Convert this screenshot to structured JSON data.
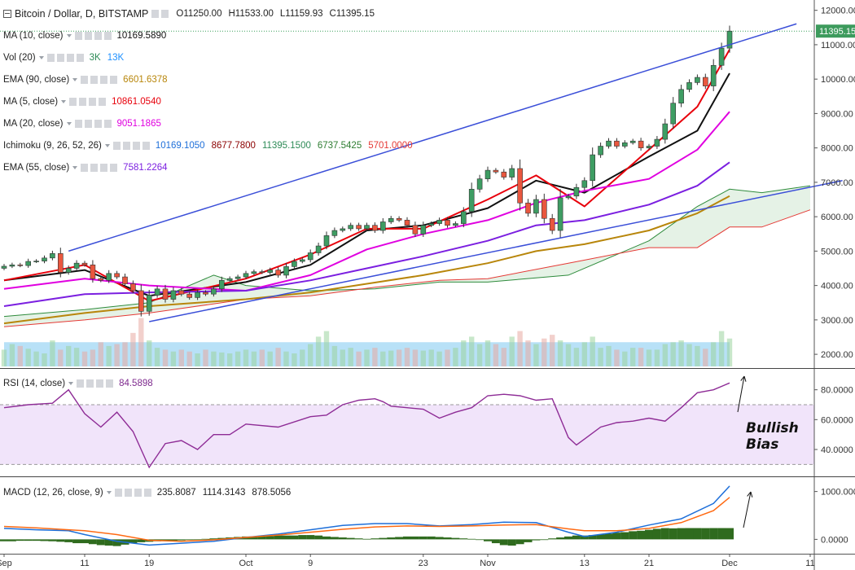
{
  "header": {
    "symbol": "Bitcoin / Dollar, D, BITSTAMP",
    "open": "O11250.00",
    "high": "H11533.00",
    "low": "L11159.93",
    "close": "C11395.15"
  },
  "legends": [
    {
      "name": "MA (10, close)",
      "values": [
        "10169.5890"
      ],
      "colors": [
        "#111111"
      ]
    },
    {
      "name": "Vol (20)",
      "values": [
        "3K",
        "13K"
      ],
      "colors": [
        "#2e8b57",
        "#1e90ff"
      ]
    },
    {
      "name": "EMA (90, close)",
      "values": [
        "6601.6378"
      ],
      "colors": [
        "#b8860b"
      ]
    },
    {
      "name": "MA (5, close)",
      "values": [
        "10861.0540"
      ],
      "colors": [
        "#e8000b"
      ]
    },
    {
      "name": "MA (20, close)",
      "values": [
        "9051.1865"
      ],
      "colors": [
        "#e000e0"
      ]
    },
    {
      "name": "Ichimoku (9, 26, 52, 26)",
      "values": [
        "10169.1050",
        "8677.7800",
        "11395.1500",
        "6737.5425",
        "5701.0000"
      ],
      "colors": [
        "#1e6fd9",
        "#8b0000",
        "#2e8b57",
        "#2e7d32",
        "#e53935"
      ]
    },
    {
      "name": "EMA (55, close)",
      "values": [
        "7581.2264"
      ],
      "colors": [
        "#7b1fe0"
      ]
    }
  ],
  "rsi_legend": {
    "name": "RSI (14, close)",
    "value": "84.5898"
  },
  "macd_legend": {
    "name": "MACD (12, 26, close, 9)",
    "values": [
      "235.8087",
      "1114.3143",
      "878.5056"
    ],
    "colors": [
      "#2e7d32",
      "#1e6fd9",
      "#ff6a13"
    ]
  },
  "annotation": {
    "line1": "Bullish",
    "line2": "Bias"
  },
  "chart_data": [
    {
      "type": "candlestick",
      "title": "Bitcoin / Dollar, D, BITSTAMP",
      "ylim": [
        1600,
        12300
      ],
      "y_ticks": [
        "12000.00",
        "11000.00",
        "10000.00",
        "9000.00",
        "8000.00",
        "7000.00",
        "6000.00",
        "5000.00",
        "4000.00",
        "3000.00",
        "2000.00"
      ],
      "y_tick_values": [
        12000,
        11000,
        10000,
        9000,
        8000,
        7000,
        6000,
        5000,
        4000,
        3000,
        2000
      ],
      "last_price_label": "11395.15",
      "last_price": 11395.15,
      "x_ticks": [
        "Sep",
        "11",
        "19",
        "Oct",
        "9",
        "23",
        "Nov",
        "13",
        "21",
        "Dec",
        "11"
      ],
      "x_tick_days": [
        0,
        10,
        18,
        30,
        38,
        52,
        60,
        72,
        80,
        90,
        100
      ],
      "closes": [
        4560,
        4600,
        4580,
        4700,
        4710,
        4800,
        4930,
        4380,
        4500,
        4650,
        4600,
        4200,
        4150,
        4350,
        4250,
        4050,
        3850,
        3250,
        3720,
        3900,
        3600,
        3850,
        3750,
        3650,
        3800,
        3750,
        3900,
        4150,
        4200,
        4250,
        4350,
        4400,
        4380,
        4450,
        4300,
        4550,
        4700,
        4750,
        4950,
        5150,
        5450,
        5600,
        5650,
        5750,
        5650,
        5750,
        5600,
        5850,
        5950,
        5900,
        5750,
        5500,
        5750,
        5800,
        5900,
        5750,
        5800,
        6150,
        6800,
        7100,
        7350,
        7300,
        7150,
        7400,
        6400,
        6100,
        6500,
        5950,
        5600,
        6550,
        6600,
        6850,
        7050,
        7800,
        8050,
        8200,
        8050,
        8150,
        8200,
        8000,
        8050,
        8250,
        8700,
        9300,
        9700,
        9900,
        10050,
        9800,
        10400,
        10900,
        11395
      ],
      "series": [
        {
          "name": "MA (10, close)",
          "color": "#111111",
          "points": [
            [
              0,
              4150
            ],
            [
              10,
              4450
            ],
            [
              18,
              3700
            ],
            [
              30,
              4100
            ],
            [
              38,
              4600
            ],
            [
              45,
              5600
            ],
            [
              52,
              5750
            ],
            [
              60,
              6250
            ],
            [
              66,
              7050
            ],
            [
              72,
              6700
            ],
            [
              80,
              7750
            ],
            [
              86,
              8500
            ],
            [
              90,
              10169
            ]
          ]
        },
        {
          "name": "MA (5, close)",
          "color": "#e8000b",
          "points": [
            [
              0,
              4150
            ],
            [
              10,
              4600
            ],
            [
              18,
              3550
            ],
            [
              30,
              4200
            ],
            [
              38,
              4900
            ],
            [
              45,
              5650
            ],
            [
              52,
              5650
            ],
            [
              60,
              6500
            ],
            [
              66,
              7200
            ],
            [
              72,
              6300
            ],
            [
              80,
              7950
            ],
            [
              86,
              9200
            ],
            [
              90,
              10861
            ]
          ]
        },
        {
          "name": "MA (20, close)",
          "color": "#e000e0",
          "points": [
            [
              0,
              3900
            ],
            [
              10,
              4200
            ],
            [
              18,
              4000
            ],
            [
              30,
              3850
            ],
            [
              38,
              4300
            ],
            [
              45,
              5050
            ],
            [
              52,
              5500
            ],
            [
              60,
              5900
            ],
            [
              66,
              6400
            ],
            [
              72,
              6750
            ],
            [
              80,
              7100
            ],
            [
              86,
              7950
            ],
            [
              90,
              9051
            ]
          ]
        },
        {
          "name": "EMA (55, close)",
          "color": "#7b1fe0",
          "points": [
            [
              0,
              3400
            ],
            [
              10,
              3750
            ],
            [
              18,
              3800
            ],
            [
              30,
              3850
            ],
            [
              38,
              4150
            ],
            [
              45,
              4500
            ],
            [
              52,
              4850
            ],
            [
              60,
              5300
            ],
            [
              66,
              5750
            ],
            [
              72,
              5900
            ],
            [
              80,
              6350
            ],
            [
              86,
              6900
            ],
            [
              90,
              7581
            ]
          ]
        },
        {
          "name": "EMA (90, close)",
          "color": "#b8860b",
          "points": [
            [
              0,
              2900
            ],
            [
              10,
              3200
            ],
            [
              18,
              3400
            ],
            [
              30,
              3600
            ],
            [
              38,
              3800
            ],
            [
              45,
              4050
            ],
            [
              52,
              4300
            ],
            [
              60,
              4650
            ],
            [
              66,
              5000
            ],
            [
              72,
              5200
            ],
            [
              80,
              5600
            ],
            [
              86,
              6100
            ],
            [
              90,
              6601
            ]
          ]
        }
      ],
      "ichimoku_span_a": [
        [
          0,
          3100
        ],
        [
          10,
          3300
        ],
        [
          18,
          3500
        ],
        [
          26,
          4300
        ],
        [
          30,
          4000
        ],
        [
          38,
          3850
        ],
        [
          46,
          3900
        ],
        [
          54,
          4100
        ],
        [
          60,
          4100
        ],
        [
          70,
          4300
        ],
        [
          80,
          5300
        ],
        [
          86,
          6300
        ],
        [
          90,
          6800
        ],
        [
          94,
          6700
        ],
        [
          100,
          6900
        ]
      ],
      "ichimoku_span_b": [
        [
          0,
          2800
        ],
        [
          10,
          3000
        ],
        [
          18,
          3200
        ],
        [
          30,
          3600
        ],
        [
          38,
          3700
        ],
        [
          46,
          3950
        ],
        [
          54,
          4150
        ],
        [
          60,
          4200
        ],
        [
          70,
          4650
        ],
        [
          80,
          5100
        ],
        [
          86,
          5100
        ],
        [
          90,
          5700
        ],
        [
          94,
          5700
        ],
        [
          100,
          6200
        ]
      ],
      "trendlines": [
        {
          "from": [
            8,
            5000
          ],
          "to": [
            90,
            11000
          ]
        },
        {
          "from": [
            18,
            2950
          ],
          "to": [
            104,
            7050
          ]
        }
      ],
      "volume_ylim": [
        0,
        35000
      ],
      "volumes": [
        9000,
        12000,
        11000,
        9500,
        8000,
        7000,
        14000,
        9000,
        11000,
        10000,
        8000,
        9000,
        13000,
        11000,
        12000,
        13000,
        18000,
        26000,
        14000,
        10000,
        9000,
        8000,
        9000,
        8000,
        7000,
        9000,
        8000,
        7500,
        7000,
        8000,
        9000,
        8000,
        9000,
        8000,
        10000,
        8000,
        7000,
        9000,
        12000,
        16000,
        19000,
        11000,
        9000,
        10000,
        8000,
        9000,
        10000,
        8000,
        8500,
        9000,
        10000,
        9000,
        8500,
        9000,
        8000,
        9000,
        10000,
        14000,
        16000,
        12000,
        14000,
        12000,
        10000,
        16000,
        19000,
        14000,
        12000,
        15000,
        17000,
        14000,
        12000,
        10000,
        13000,
        16000,
        10000,
        11000,
        9000,
        8000,
        10000,
        10000,
        9000,
        9000,
        12000,
        13000,
        14000,
        12000,
        11000,
        9500,
        13000,
        19000,
        15000
      ],
      "volume_ma": 13000
    },
    {
      "type": "line",
      "title": "RSI (14, close)",
      "ylim": [
        22,
        94
      ],
      "y_ticks": [
        "80.0000",
        "60.0000",
        "40.0000"
      ],
      "y_tick_values": [
        80,
        60,
        40
      ],
      "bands": [
        30,
        70
      ],
      "points": [
        [
          0,
          68
        ],
        [
          3,
          70
        ],
        [
          6,
          71
        ],
        [
          8,
          80
        ],
        [
          10,
          64
        ],
        [
          12,
          55
        ],
        [
          14,
          65
        ],
        [
          16,
          52
        ],
        [
          18,
          28
        ],
        [
          20,
          44
        ],
        [
          22,
          46
        ],
        [
          24,
          40
        ],
        [
          26,
          50
        ],
        [
          28,
          50
        ],
        [
          30,
          57
        ],
        [
          34,
          55
        ],
        [
          38,
          62
        ],
        [
          40,
          63
        ],
        [
          42,
          70
        ],
        [
          44,
          73
        ],
        [
          46,
          74
        ],
        [
          47,
          72
        ],
        [
          48,
          69
        ],
        [
          50,
          68
        ],
        [
          52,
          67
        ],
        [
          54,
          61
        ],
        [
          56,
          65
        ],
        [
          58,
          68
        ],
        [
          60,
          76
        ],
        [
          62,
          77
        ],
        [
          64,
          76
        ],
        [
          66,
          73
        ],
        [
          68,
          74
        ],
        [
          70,
          48
        ],
        [
          71,
          43
        ],
        [
          72,
          47
        ],
        [
          74,
          55
        ],
        [
          76,
          58
        ],
        [
          78,
          59
        ],
        [
          80,
          61
        ],
        [
          82,
          59
        ],
        [
          84,
          68
        ],
        [
          86,
          78
        ],
        [
          88,
          80
        ],
        [
          90,
          84.59
        ]
      ]
    },
    {
      "type": "line",
      "title": "MACD (12, 26, close, 9)",
      "ylim": [
        -300,
        1300
      ],
      "y_ticks": [
        "1000.0000",
        "0.0000"
      ],
      "y_tick_values": [
        1000,
        0
      ],
      "macd": [
        [
          0,
          230
        ],
        [
          4,
          200
        ],
        [
          8,
          180
        ],
        [
          10,
          100
        ],
        [
          14,
          -40
        ],
        [
          18,
          -120
        ],
        [
          22,
          -80
        ],
        [
          26,
          -40
        ],
        [
          30,
          40
        ],
        [
          34,
          110
        ],
        [
          38,
          200
        ],
        [
          42,
          290
        ],
        [
          46,
          330
        ],
        [
          50,
          330
        ],
        [
          54,
          280
        ],
        [
          58,
          310
        ],
        [
          62,
          360
        ],
        [
          66,
          350
        ],
        [
          70,
          150
        ],
        [
          72,
          60
        ],
        [
          76,
          150
        ],
        [
          80,
          300
        ],
        [
          84,
          430
        ],
        [
          88,
          750
        ],
        [
          90,
          1114
        ]
      ],
      "signal": [
        [
          0,
          270
        ],
        [
          4,
          240
        ],
        [
          8,
          200
        ],
        [
          10,
          180
        ],
        [
          14,
          100
        ],
        [
          18,
          -20
        ],
        [
          22,
          -40
        ],
        [
          26,
          -10
        ],
        [
          30,
          40
        ],
        [
          34,
          90
        ],
        [
          38,
          150
        ],
        [
          42,
          210
        ],
        [
          46,
          260
        ],
        [
          50,
          280
        ],
        [
          54,
          270
        ],
        [
          58,
          280
        ],
        [
          62,
          300
        ],
        [
          66,
          310
        ],
        [
          70,
          220
        ],
        [
          72,
          180
        ],
        [
          76,
          180
        ],
        [
          80,
          230
        ],
        [
          84,
          350
        ],
        [
          88,
          600
        ],
        [
          90,
          878.5
        ]
      ],
      "histogram": [
        -40,
        -40,
        -30,
        -30,
        -30,
        -35,
        -40,
        -50,
        -60,
        -80,
        -80,
        -100,
        -120,
        -130,
        -140,
        -110,
        -80,
        -60,
        -50,
        -40,
        -30,
        -30,
        -20,
        -10,
        0,
        10,
        20,
        30,
        40,
        50,
        60,
        60,
        70,
        70,
        80,
        80,
        80,
        90,
        90,
        80,
        60,
        50,
        40,
        30,
        20,
        10,
        20,
        30,
        40,
        50,
        60,
        60,
        60,
        60,
        50,
        40,
        30,
        20,
        10,
        0,
        -40,
        -80,
        -120,
        -130,
        -100,
        -60,
        -20,
        0,
        20,
        40,
        60,
        80,
        80,
        90,
        100,
        120,
        140,
        150,
        170,
        180,
        200,
        220,
        235,
        230,
        235,
        236,
        236,
        235,
        236,
        236,
        235.8
      ]
    }
  ]
}
